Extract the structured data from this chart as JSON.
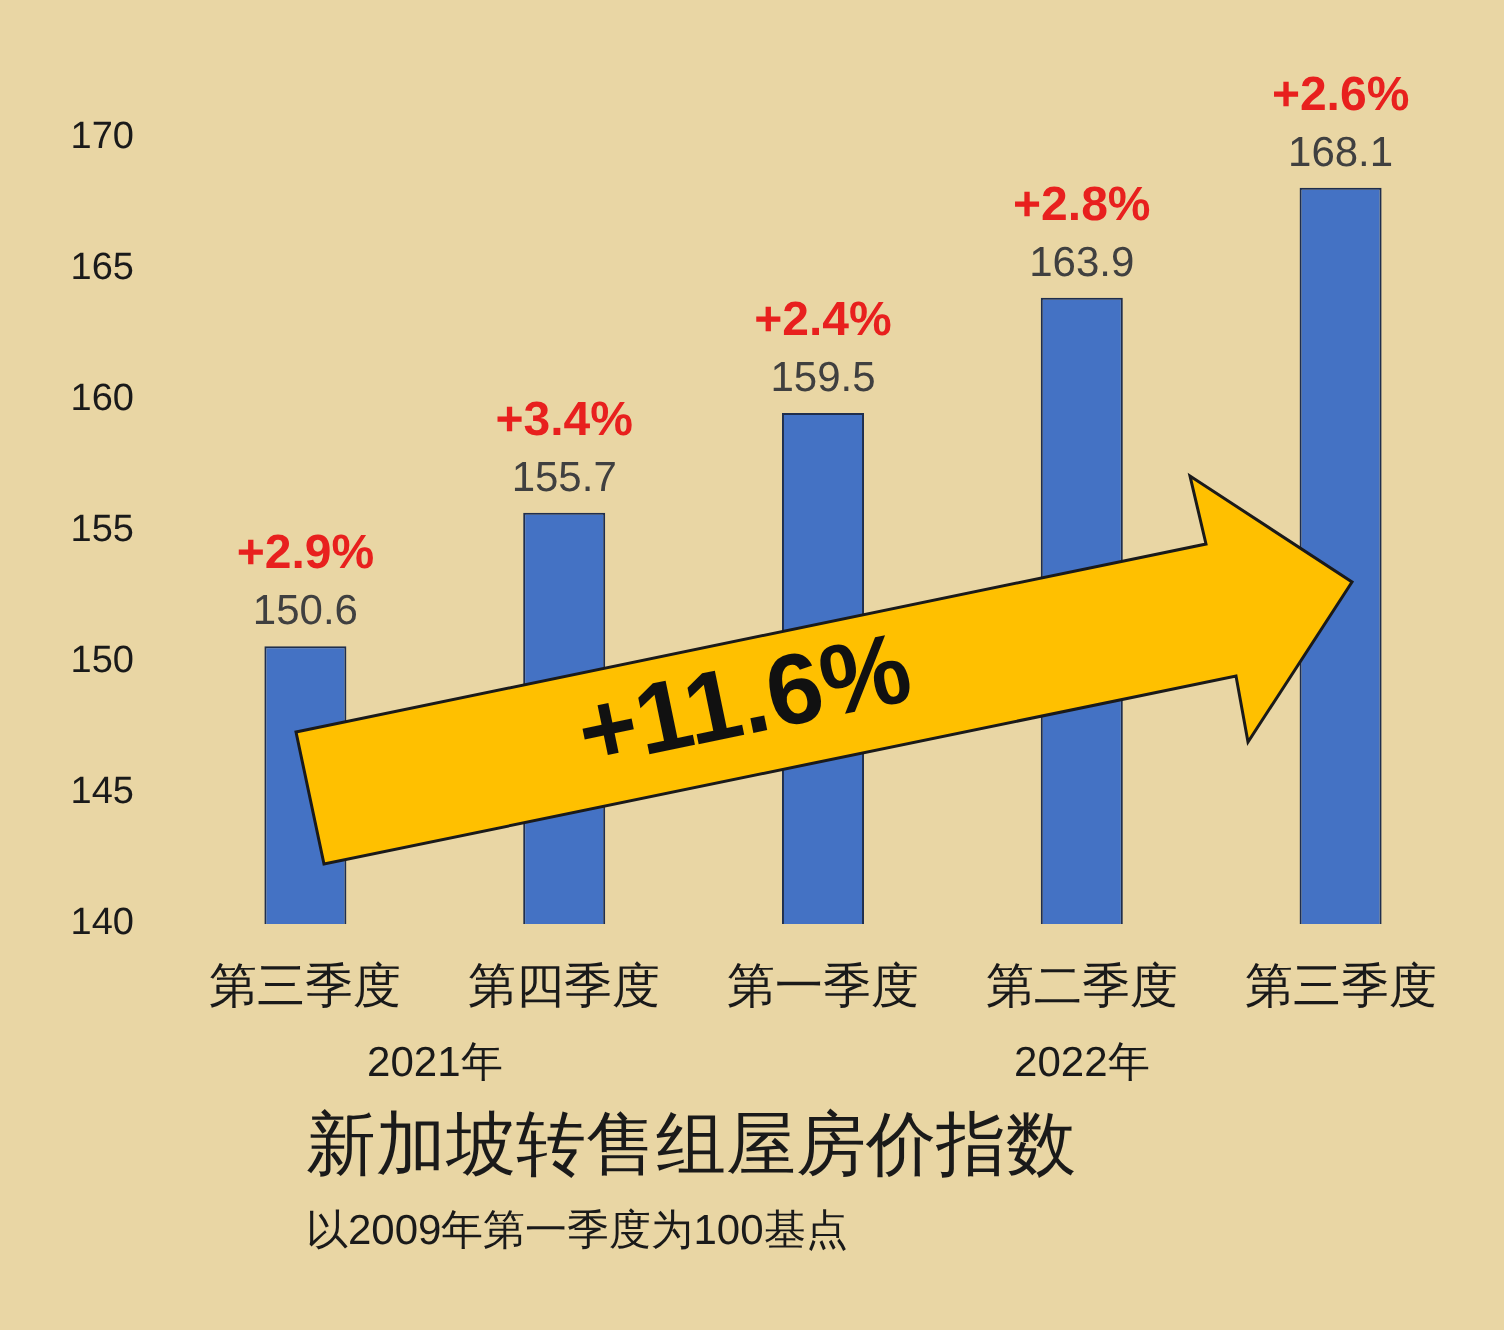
{
  "chart_data": {
    "type": "bar",
    "title": "新加坡转售组屋房价指数",
    "subtitle": "以2009年第一季度为100基点",
    "categories": [
      "第三季度",
      "第四季度",
      "第一季度",
      "第二季度",
      "第三季度"
    ],
    "values": [
      150.6,
      155.7,
      159.5,
      163.9,
      168.1
    ],
    "color": "#4472c4",
    "ylim": [
      140,
      170
    ],
    "yticks": [
      140,
      145,
      150,
      155,
      160,
      165,
      170
    ],
    "grid": false,
    "legend": false,
    "data_labels": true,
    "annotations": [
      "+2.9%",
      "+3.4%",
      "+2.4%",
      "+2.8%",
      "+2.6%",
      "+11.6%",
      "2021年",
      "2022年"
    ]
  }
}
